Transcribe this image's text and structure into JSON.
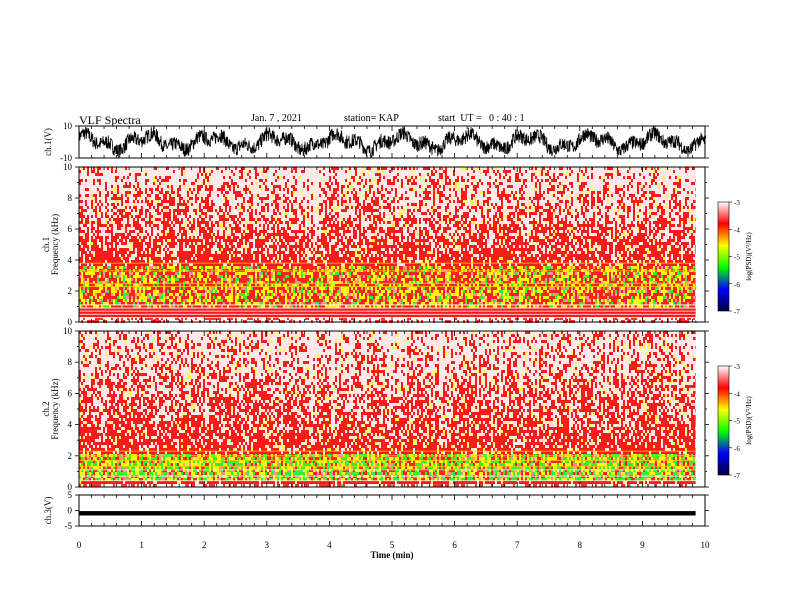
{
  "header": {
    "title": "VLF Spectra",
    "date": "Jan. 7 , 2021",
    "station": "station= KAP",
    "start_ut": "start  UT =   0 : 40 : 1"
  },
  "colorbar": {
    "label": "log(PSD)(V²/Hz)",
    "ticks": [
      "-3",
      "-4",
      "-5",
      "-6",
      "-7"
    ],
    "colors": [
      "#ffffff",
      "#ff0000",
      "#ffff00",
      "#00ff00",
      "#0000ff",
      "#000040"
    ]
  },
  "chart_data": [
    {
      "type": "line",
      "name": "ch1-waveform",
      "ylabel": "ch.1(V)",
      "ylim": [
        -10,
        10
      ],
      "yticks": [
        "10",
        "-10"
      ],
      "xlim": [
        0,
        10
      ],
      "color": "#000000"
    },
    {
      "type": "heatmap",
      "name": "ch1-spectrogram",
      "ylabel": "ch.1\nFrequency  (kHz)",
      "ylabel_lines": [
        "ch.1",
        "Frequency  (kHz)"
      ],
      "ylim": [
        0,
        10
      ],
      "yticks": [
        "0",
        "2",
        "4",
        "6",
        "8",
        "10"
      ],
      "xlim": [
        0,
        9.85
      ],
      "intense_band_khz": [
        1.0,
        3.8
      ],
      "hum_lines_khz": [
        0.3,
        0.5,
        0.7,
        0.9,
        1.1,
        2.3,
        2.5,
        3.3,
        3.8
      ]
    },
    {
      "type": "heatmap",
      "name": "ch2-spectrogram",
      "ylabel_lines": [
        "ch.2",
        "Frequency  (kHz)"
      ],
      "ylim": [
        0,
        10
      ],
      "yticks": [
        "0",
        "2",
        "4",
        "6",
        "8",
        "10"
      ],
      "xlim": [
        0,
        9.85
      ],
      "intense_band_khz": [
        0.5,
        2.3
      ],
      "hum_lines_khz": [
        0.4,
        0.7,
        1.1,
        1.3,
        1.7,
        2.0,
        2.3
      ]
    },
    {
      "type": "line",
      "name": "ch3-waveform",
      "ylabel": "ch.3(V)",
      "ylim": [
        -5,
        5
      ],
      "yticks": [
        "5",
        "0",
        "-5"
      ],
      "xlim": [
        0,
        10
      ],
      "approx_level": -0.9,
      "color": "#000000"
    }
  ],
  "x_axis": {
    "label": "Time  (min)",
    "ticks": [
      "0",
      "1",
      "2",
      "3",
      "4",
      "5",
      "6",
      "7",
      "8",
      "9",
      "10"
    ]
  }
}
